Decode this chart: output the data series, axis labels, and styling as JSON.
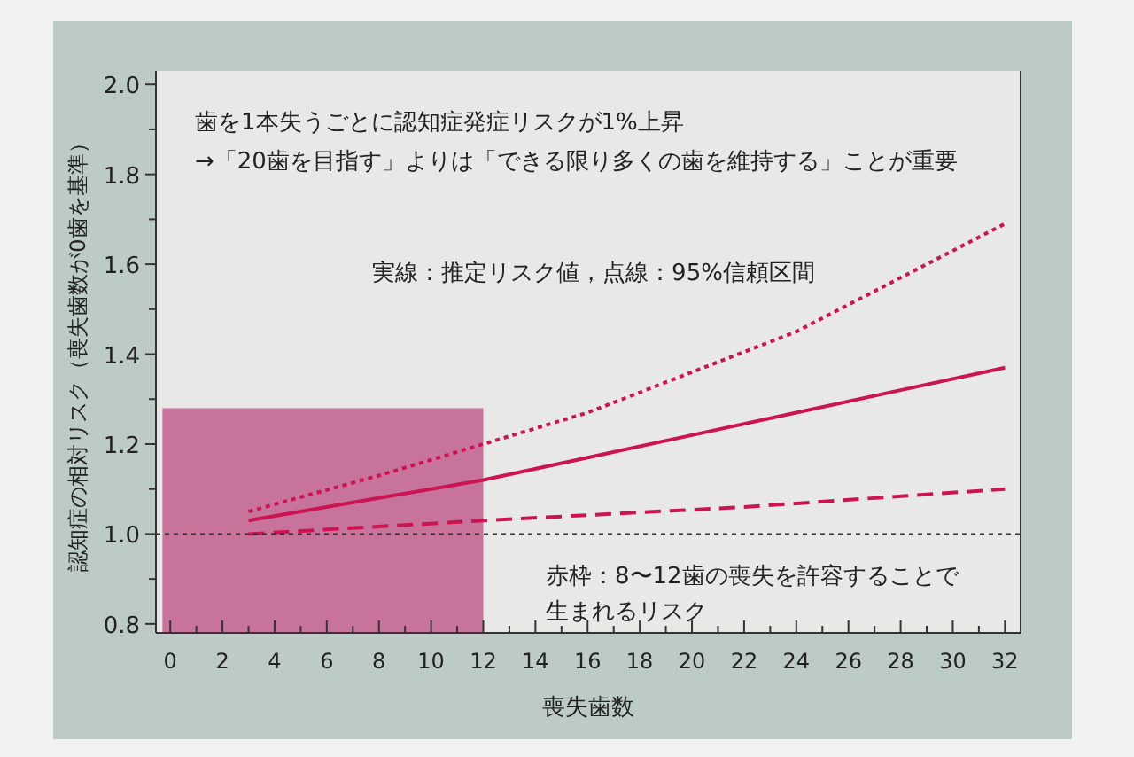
{
  "chart_data": {
    "type": "line",
    "xlabel": "喪失歯数",
    "ylabel": "認知症の相対リスク（喪失歯数が0歯を基準）",
    "xlim": [
      -0.55,
      32.6
    ],
    "ylim": [
      0.78,
      2.03
    ],
    "xticks": [
      0,
      {
        "value": 1,
        "label": null
      },
      2,
      {
        "value": 3,
        "label": null
      },
      4,
      {
        "value": 5,
        "label": null
      },
      6,
      {
        "value": 7,
        "label": null
      },
      8,
      {
        "value": 9,
        "label": null
      },
      10,
      {
        "value": 11,
        "label": null
      },
      12,
      {
        "value": 13,
        "label": null
      },
      14,
      {
        "value": 15,
        "label": null
      },
      16,
      {
        "value": 17,
        "label": null
      },
      18,
      {
        "value": 19,
        "label": null
      },
      20,
      {
        "value": 21,
        "label": null
      },
      22,
      {
        "value": 23,
        "label": null
      },
      24,
      {
        "value": 25,
        "label": null
      },
      26,
      {
        "value": 27,
        "label": null
      },
      28,
      {
        "value": 29,
        "label": null
      },
      30,
      {
        "value": 31,
        "label": null
      },
      32
    ],
    "yticks": [
      {
        "value": 0.8,
        "label": "0.8"
      },
      {
        "value": 0.9,
        "label": null
      },
      {
        "value": 1.0,
        "label": "1.0"
      },
      {
        "value": 1.1,
        "label": null
      },
      {
        "value": 1.2,
        "label": "1.2"
      },
      {
        "value": 1.3,
        "label": null
      },
      {
        "value": 1.4,
        "label": "1.4"
      },
      {
        "value": 1.5,
        "label": null
      },
      {
        "value": 1.6,
        "label": "1.6"
      },
      {
        "value": 1.7,
        "label": null
      },
      {
        "value": 1.8,
        "label": "1.8"
      },
      {
        "value": 1.9,
        "label": null
      },
      {
        "value": 2.0,
        "label": "2.0"
      }
    ],
    "series": [
      {
        "type": "area",
        "color": "#c7739b",
        "x": [
          -0.3,
          12
        ],
        "values": [
          1.28,
          1.28
        ]
      },
      {
        "color": "#cc1452",
        "line_style": "dotted",
        "x": [
          3,
          8,
          12,
          16,
          20,
          24,
          28,
          32
        ],
        "values": [
          1.05,
          1.13,
          1.2,
          1.27,
          1.36,
          1.45,
          1.57,
          1.69
        ]
      },
      {
        "color": "#cc1452",
        "line_style": "solid",
        "x": [
          3,
          8,
          12,
          16,
          20,
          24,
          28,
          32
        ],
        "values": [
          1.03,
          1.08,
          1.12,
          1.17,
          1.22,
          1.27,
          1.32,
          1.37
        ]
      },
      {
        "color": "#cc1452",
        "line_style": "dashed",
        "x": [
          3,
          12,
          22,
          32
        ],
        "values": [
          1.0,
          1.03,
          1.06,
          1.1
        ]
      }
    ],
    "ref_lines": [
      {
        "axis": "y",
        "value": 1.0,
        "color": "#333333",
        "line_style": "dotted"
      }
    ],
    "annotations": [
      "歯を1本失うごとに認知症発症リスクが1%上昇",
      "→「20歯を目指す」よりは「できる限り多くの歯を維持する」ことが重要",
      "実線：推定リスク値，点線：95%信頼区間",
      "赤枠：8〜12歯の喪失を許容することで",
      "生まれるリスク"
    ]
  }
}
